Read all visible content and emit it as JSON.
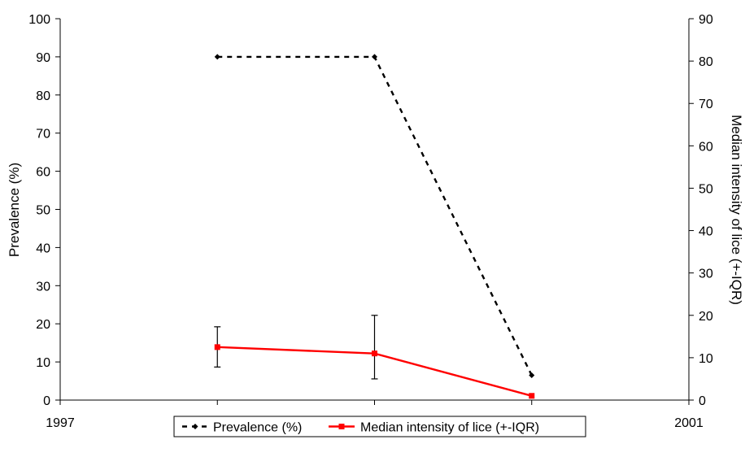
{
  "chart_data": {
    "type": "line",
    "title": "",
    "x": [
      1998,
      1999,
      2000
    ],
    "xlim": [
      1997,
      2001
    ],
    "x_ticks": [
      "1997",
      "1998",
      "1999",
      "2000",
      "2001"
    ],
    "ylabel_left": "Prevalence (%)",
    "ylim_left": [
      0,
      100
    ],
    "y_ticks_left": [
      "0",
      "10",
      "20",
      "30",
      "40",
      "50",
      "60",
      "70",
      "80",
      "90",
      "100"
    ],
    "ylabel_right": "Median intensity of lice (+-IQR)",
    "ylim_right": [
      0,
      90
    ],
    "y_ticks_right": [
      "0",
      "10",
      "20",
      "30",
      "40",
      "50",
      "60",
      "70",
      "80",
      "90"
    ],
    "grid": false,
    "legend_position": "bottom",
    "series": [
      {
        "name": "Prevalence (%)",
        "axis": "left",
        "style": "dashed",
        "marker": "diamond",
        "color": "#000000",
        "values": [
          90,
          90,
          6.5
        ]
      },
      {
        "name": "Median intensity of lice (+-IQR)",
        "axis": "right",
        "style": "solid",
        "marker": "square",
        "color": "#ff0000",
        "values": [
          12.5,
          11,
          1
        ],
        "error_low": [
          7.8,
          5,
          null
        ],
        "error_high": [
          17.3,
          20,
          null
        ],
        "error_color": "#000000"
      }
    ]
  }
}
